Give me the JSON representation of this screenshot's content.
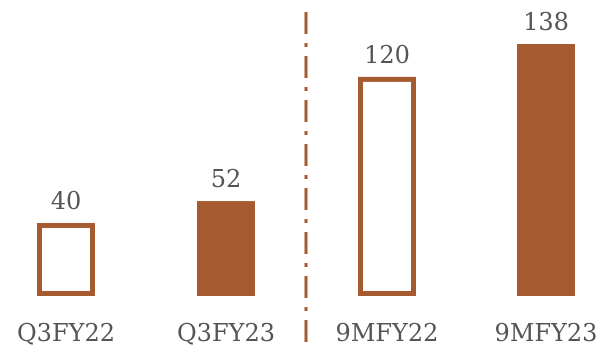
{
  "chart_data": {
    "type": "bar",
    "title": "",
    "xlabel": "",
    "ylabel": "",
    "categories": [
      "Q3FY22",
      "Q3FY23",
      "9MFY22",
      "9MFY23"
    ],
    "values": [
      40,
      52,
      120,
      138
    ],
    "bar_styles": [
      "outline",
      "filled",
      "outline",
      "filled"
    ],
    "divider": {
      "after_category_index": 1,
      "style": "dash-dot"
    },
    "grid": false,
    "legend": "none",
    "colors": {
      "bar": "#A65A30",
      "outline_fill": "#FFFFFF",
      "text": "#555555"
    }
  }
}
